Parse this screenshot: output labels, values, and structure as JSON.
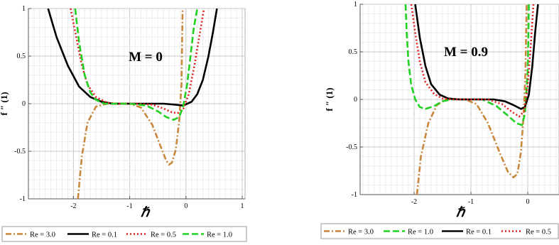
{
  "chart_data": [
    {
      "type": "line",
      "annotation": "M = 0",
      "xlabel": "ℏ",
      "ylabel": "f ″ (1)",
      "xlim": [
        -2.8,
        1.05
      ],
      "ylim": [
        -1,
        1
      ],
      "x_ticks": [
        "-2",
        "-1",
        "0",
        "1"
      ],
      "y_ticks": [
        "-1",
        "-0.5",
        "0",
        "0.5",
        "1"
      ],
      "grid": true,
      "legend_position": "bottom",
      "series": [
        {
          "name": "Re = 3.0",
          "color": "#c8873c",
          "dash": "dashdot",
          "x": [
            -1.92,
            -1.85,
            -1.75,
            -1.6,
            -1.4,
            -1.2,
            -1.0,
            -0.8,
            -0.6,
            -0.45,
            -0.35,
            -0.3,
            -0.25,
            -0.18,
            -0.12,
            -0.08,
            -0.06
          ],
          "y": [
            -1.0,
            -0.55,
            -0.2,
            -0.03,
            0.0,
            0.0,
            0.0,
            -0.04,
            -0.22,
            -0.45,
            -0.6,
            -0.64,
            -0.62,
            -0.48,
            -0.18,
            0.2,
            1.0
          ]
        },
        {
          "name": "Re = 0.1",
          "color": "#000000",
          "dash": "solid",
          "x": [
            -2.45,
            -2.3,
            -2.1,
            -1.9,
            -1.7,
            -1.5,
            -1.3,
            -1.0,
            -0.7,
            -0.4,
            -0.2,
            -0.05,
            0.1,
            0.2,
            0.3,
            0.4,
            0.48,
            0.55
          ],
          "y": [
            1.0,
            0.7,
            0.4,
            0.18,
            0.07,
            0.02,
            0.0,
            0.0,
            0.0,
            0.0,
            -0.01,
            -0.02,
            0.02,
            0.1,
            0.25,
            0.5,
            0.75,
            1.0
          ]
        },
        {
          "name": "Re = 0.5",
          "color": "#e02020",
          "dash": "dotted",
          "x": [
            -2.05,
            -1.95,
            -1.85,
            -1.75,
            -1.6,
            -1.4,
            -1.2,
            -0.9,
            -0.6,
            -0.4,
            -0.25,
            -0.15,
            -0.05,
            0.05,
            0.15,
            0.25,
            0.32
          ],
          "y": [
            1.0,
            0.7,
            0.4,
            0.2,
            0.07,
            0.01,
            0.0,
            0.0,
            -0.01,
            -0.05,
            -0.09,
            -0.1,
            -0.06,
            0.1,
            0.4,
            0.75,
            1.0
          ]
        },
        {
          "name": "Re = 1.0",
          "color": "#22d022",
          "dash": "dashed",
          "x": [
            -1.97,
            -1.9,
            -1.8,
            -1.7,
            -1.6,
            -1.45,
            -1.25,
            -1.0,
            -0.7,
            -0.5,
            -0.35,
            -0.22,
            -0.12,
            -0.05,
            0.02,
            0.08,
            0.14,
            0.2
          ],
          "y": [
            1.0,
            0.65,
            0.3,
            0.12,
            0.04,
            0.0,
            0.0,
            0.0,
            -0.02,
            -0.08,
            -0.14,
            -0.17,
            -0.14,
            -0.03,
            0.2,
            0.5,
            0.8,
            1.0
          ]
        }
      ]
    },
    {
      "type": "line",
      "annotation": "M = 0.9",
      "xlabel": "ℏ",
      "ylabel": "f ″ (1)",
      "xlim": [
        -2.95,
        0.55
      ],
      "ylim": [
        -1,
        1
      ],
      "x_ticks": [
        "-2",
        "-1",
        "0"
      ],
      "y_ticks": [
        "-1",
        "-0.5",
        "0",
        "0.5",
        "1"
      ],
      "grid": true,
      "legend_position": "bottom",
      "series": [
        {
          "name": "Re = 3.0",
          "color": "#c8873c",
          "dash": "dashdot",
          "x": [
            -1.95,
            -1.88,
            -1.75,
            -1.6,
            -1.45,
            -1.3,
            -1.1,
            -0.9,
            -0.7,
            -0.5,
            -0.35,
            -0.25,
            -0.18,
            -0.12,
            -0.07,
            -0.04,
            -0.02
          ],
          "y": [
            -1.0,
            -0.6,
            -0.25,
            -0.06,
            0.0,
            0.0,
            0.0,
            -0.05,
            -0.25,
            -0.55,
            -0.76,
            -0.82,
            -0.78,
            -0.55,
            -0.15,
            0.3,
            1.0
          ]
        },
        {
          "name": "Re = 1.0",
          "color": "#22d022",
          "dash": "dashed",
          "x": [
            -2.15,
            -2.13,
            -2.1,
            -2.05,
            -1.98,
            -1.9,
            -1.8,
            -1.65,
            -1.5,
            -1.35,
            -1.1,
            -0.8,
            -0.55,
            -0.35,
            -0.2,
            -0.1,
            -0.05,
            0.0,
            0.02
          ],
          "y": [
            1.0,
            0.7,
            0.4,
            0.15,
            0.0,
            -0.08,
            -0.1,
            -0.07,
            -0.02,
            0.0,
            0.0,
            0.0,
            -0.07,
            -0.17,
            -0.25,
            -0.27,
            -0.15,
            0.3,
            1.0
          ]
        },
        {
          "name": "Re = 0.1",
          "color": "#000000",
          "dash": "solid",
          "x": [
            -1.98,
            -1.9,
            -1.8,
            -1.7,
            -1.55,
            -1.4,
            -1.2,
            -0.9,
            -0.6,
            -0.4,
            -0.25,
            -0.12,
            -0.05,
            0.02,
            0.08,
            0.13,
            0.18
          ],
          "y": [
            1.0,
            0.65,
            0.35,
            0.16,
            0.05,
            0.01,
            0.0,
            0.0,
            0.0,
            -0.02,
            -0.06,
            -0.1,
            -0.08,
            0.05,
            0.35,
            0.7,
            1.0
          ]
        },
        {
          "name": "Re = 0.5",
          "color": "#e02020",
          "dash": "dotted",
          "x": [
            -2.05,
            -1.98,
            -1.9,
            -1.8,
            -1.65,
            -1.5,
            -1.3,
            -1.0,
            -0.7,
            -0.45,
            -0.28,
            -0.15,
            -0.06,
            0.0,
            0.05,
            0.1
          ],
          "y": [
            1.0,
            0.7,
            0.4,
            0.18,
            0.06,
            0.01,
            0.0,
            0.0,
            0.0,
            -0.05,
            -0.13,
            -0.18,
            -0.12,
            0.15,
            0.55,
            1.0
          ]
        }
      ]
    }
  ]
}
